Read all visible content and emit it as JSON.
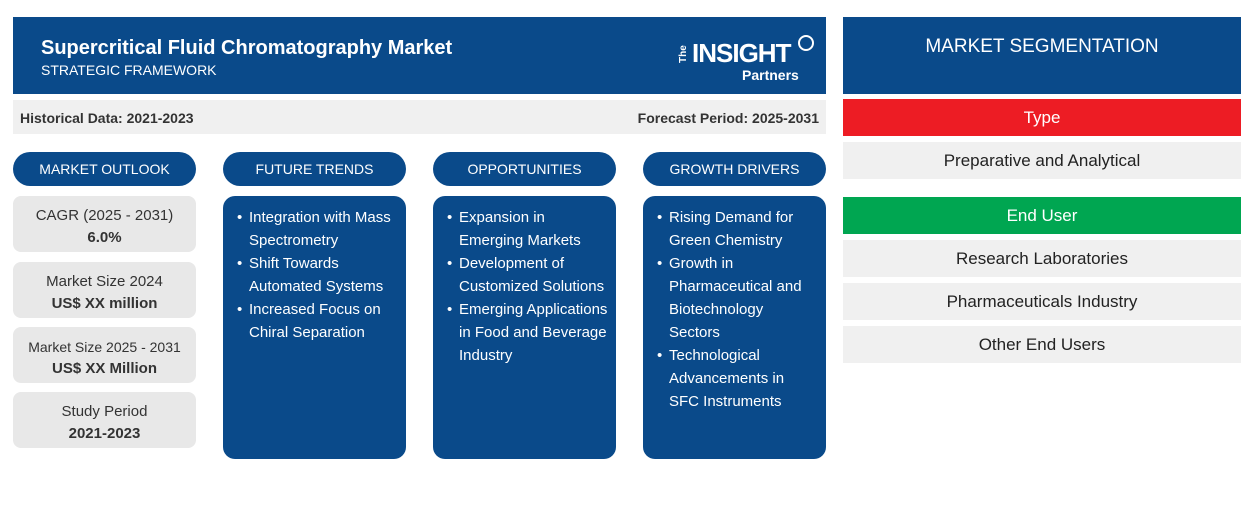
{
  "header": {
    "title": "Supercritical Fluid Chromatography Market",
    "subtitle": "STRATEGIC FRAMEWORK",
    "logo": "The INSIGHT Partners"
  },
  "band": {
    "historical": "Historical Data: 2021-2023",
    "forecast": "Forecast Period: 2025-2031"
  },
  "columns": [
    {
      "title": "MARKET OUTLOOK"
    },
    {
      "title": "FUTURE TRENDS",
      "items": [
        "Integration with Mass Spectrometry",
        "Shift Towards Automated Systems",
        "Increased Focus on Chiral Separation"
      ]
    },
    {
      "title": "OPPORTUNITIES",
      "items": [
        "Expansion in Emerging Markets",
        "Development of Customized Solutions",
        "Emerging Applications in Food and Beverage Industry"
      ]
    },
    {
      "title": "GROWTH DRIVERS",
      "items": [
        "Rising Demand for Green Chemistry",
        "Growth in Pharmaceutical and Biotechnology Sectors",
        "Technological Advancements in SFC Instruments"
      ]
    }
  ],
  "stats": [
    {
      "label": "CAGR (2025 - 2031)",
      "value": "6.0%"
    },
    {
      "label": "Market Size 2024",
      "value": "US$ XX million"
    },
    {
      "label": "Market Size 2025 - 2031",
      "value": "US$ XX Million"
    },
    {
      "label": "Study Period",
      "value": "2021-2023"
    }
  ],
  "segmentation": {
    "title": "MARKET SEGMENTATION",
    "type": {
      "label": "Type",
      "color": "#ed1c24",
      "items": [
        "Preparative and Analytical"
      ]
    },
    "end_user": {
      "label": "End User",
      "color": "#00a651",
      "items": [
        "Research Laboratories",
        "Pharmaceuticals Industry",
        "Other End Users"
      ]
    }
  },
  "colors": {
    "navy": "#0a4a8a"
  }
}
